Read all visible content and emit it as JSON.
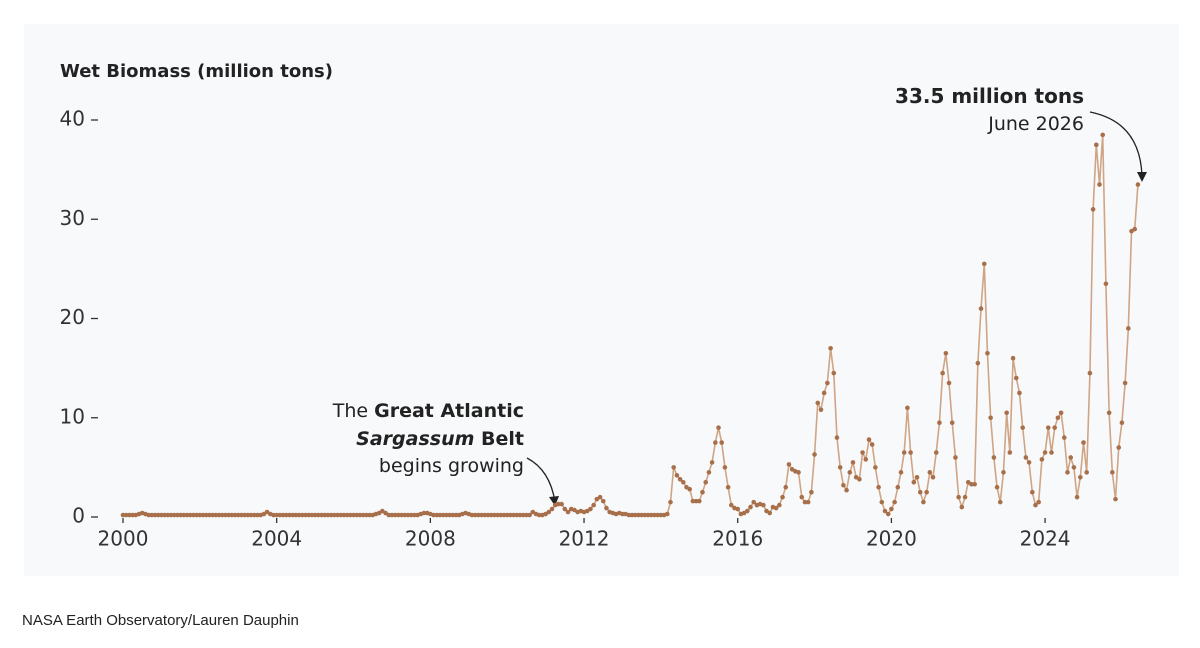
{
  "chart_data": {
    "type": "line",
    "y_label": "Wet Biomass (million tons)",
    "credit": "NASA Earth Observatory/Lauren Dauphin",
    "annotations": [
      {
        "lines": [
          [
            "The ",
            "Great Atlantic"
          ],
          [
            "Sargassum",
            " Belt"
          ],
          [
            "begins growing"
          ]
        ]
      },
      {
        "lines": [
          [
            "33.5 million tons"
          ],
          [
            "June 2026"
          ]
        ]
      }
    ],
    "color": "#a8704a",
    "line_color": "#cfa585",
    "xlim": [
      2000,
      2027
    ],
    "ylim": [
      0,
      40
    ],
    "xticks": [
      2000,
      2004,
      2008,
      2012,
      2016,
      2020,
      2024
    ],
    "yticks": [
      0,
      10,
      20,
      30,
      40
    ],
    "x": [
      2000,
      2000.083,
      2000.167,
      2000.25,
      2000.333,
      2000.417,
      2000.5,
      2000.583,
      2000.667,
      2000.75,
      2000.833,
      2000.917,
      2001,
      2001.083,
      2001.167,
      2001.25,
      2001.333,
      2001.417,
      2001.5,
      2001.583,
      2001.667,
      2001.75,
      2001.833,
      2001.917,
      2002,
      2002.083,
      2002.167,
      2002.25,
      2002.333,
      2002.417,
      2002.5,
      2002.583,
      2002.667,
      2002.75,
      2002.833,
      2002.917,
      2003,
      2003.083,
      2003.167,
      2003.25,
      2003.333,
      2003.417,
      2003.5,
      2003.583,
      2003.667,
      2003.75,
      2003.833,
      2003.917,
      2004,
      2004.083,
      2004.167,
      2004.25,
      2004.333,
      2004.417,
      2004.5,
      2004.583,
      2004.667,
      2004.75,
      2004.833,
      2004.917,
      2005,
      2005.083,
      2005.167,
      2005.25,
      2005.333,
      2005.417,
      2005.5,
      2005.583,
      2005.667,
      2005.75,
      2005.833,
      2005.917,
      2006,
      2006.083,
      2006.167,
      2006.25,
      2006.333,
      2006.417,
      2006.5,
      2006.583,
      2006.667,
      2006.75,
      2006.833,
      2006.917,
      2007,
      2007.083,
      2007.167,
      2007.25,
      2007.333,
      2007.417,
      2007.5,
      2007.583,
      2007.667,
      2007.75,
      2007.833,
      2007.917,
      2008,
      2008.083,
      2008.167,
      2008.25,
      2008.333,
      2008.417,
      2008.5,
      2008.583,
      2008.667,
      2008.75,
      2008.833,
      2008.917,
      2009,
      2009.083,
      2009.167,
      2009.25,
      2009.333,
      2009.417,
      2009.5,
      2009.583,
      2009.667,
      2009.75,
      2009.833,
      2009.917,
      2010,
      2010.083,
      2010.167,
      2010.25,
      2010.333,
      2010.417,
      2010.5,
      2010.583,
      2010.667,
      2010.75,
      2010.833,
      2010.917,
      2011,
      2011.083,
      2011.167,
      2011.25,
      2011.333,
      2011.417,
      2011.5,
      2011.583,
      2011.667,
      2011.75,
      2011.833,
      2011.917,
      2012,
      2012.083,
      2012.167,
      2012.25,
      2012.333,
      2012.417,
      2012.5,
      2012.583,
      2012.667,
      2012.75,
      2012.833,
      2012.917,
      2013,
      2013.083,
      2013.167,
      2013.25,
      2013.333,
      2013.417,
      2013.5,
      2013.583,
      2013.667,
      2013.75,
      2013.833,
      2013.917,
      2014,
      2014.083,
      2014.167,
      2014.25,
      2014.333,
      2014.417,
      2014.5,
      2014.583,
      2014.667,
      2014.75,
      2014.833,
      2014.917,
      2015,
      2015.083,
      2015.167,
      2015.25,
      2015.333,
      2015.417,
      2015.5,
      2015.583,
      2015.667,
      2015.75,
      2015.833,
      2015.917,
      2016,
      2016.083,
      2016.167,
      2016.25,
      2016.333,
      2016.417,
      2016.5,
      2016.583,
      2016.667,
      2016.75,
      2016.833,
      2016.917,
      2017,
      2017.083,
      2017.167,
      2017.25,
      2017.333,
      2017.417,
      2017.5,
      2017.583,
      2017.667,
      2017.75,
      2017.833,
      2017.917,
      2018,
      2018.083,
      2018.167,
      2018.25,
      2018.333,
      2018.417,
      2018.5,
      2018.583,
      2018.667,
      2018.75,
      2018.833,
      2018.917,
      2019,
      2019.083,
      2019.167,
      2019.25,
      2019.333,
      2019.417,
      2019.5,
      2019.583,
      2019.667,
      2019.75,
      2019.833,
      2019.917,
      2020,
      2020.083,
      2020.167,
      2020.25,
      2020.333,
      2020.417,
      2020.5,
      2020.583,
      2020.667,
      2020.75,
      2020.833,
      2020.917,
      2021,
      2021.083,
      2021.167,
      2021.25,
      2021.333,
      2021.417,
      2021.5,
      2021.583,
      2021.667,
      2021.75,
      2021.833,
      2021.917,
      2022,
      2022.083,
      2022.167,
      2022.25,
      2022.333,
      2022.417,
      2022.5,
      2022.583,
      2022.667,
      2022.75,
      2022.833,
      2022.917,
      2023,
      2023.083,
      2023.167,
      2023.25,
      2023.333,
      2023.417,
      2023.5,
      2023.583,
      2023.667,
      2023.75,
      2023.833,
      2023.917,
      2024,
      2024.083,
      2024.167,
      2024.25,
      2024.333,
      2024.417,
      2024.5,
      2024.583,
      2024.667,
      2024.75,
      2024.833,
      2024.917,
      2025,
      2025.083,
      2025.167,
      2025.25,
      2025.333,
      2025.417,
      2025.5,
      2025.583,
      2025.667,
      2025.75,
      2025.833,
      2025.917,
      2026,
      2026.083,
      2026.167,
      2026.25,
      2026.333,
      2026.417
    ],
    "values": [
      0.2,
      0.2,
      0.2,
      0.2,
      0.2,
      0.3,
      0.4,
      0.3,
      0.2,
      0.2,
      0.2,
      0.2,
      0.2,
      0.2,
      0.2,
      0.2,
      0.2,
      0.2,
      0.2,
      0.2,
      0.2,
      0.2,
      0.2,
      0.2,
      0.2,
      0.2,
      0.2,
      0.2,
      0.2,
      0.2,
      0.2,
      0.2,
      0.2,
      0.2,
      0.2,
      0.2,
      0.2,
      0.2,
      0.2,
      0.2,
      0.2,
      0.2,
      0.2,
      0.2,
      0.3,
      0.5,
      0.3,
      0.2,
      0.2,
      0.2,
      0.2,
      0.2,
      0.2,
      0.2,
      0.2,
      0.2,
      0.2,
      0.2,
      0.2,
      0.2,
      0.2,
      0.2,
      0.2,
      0.2,
      0.2,
      0.2,
      0.2,
      0.2,
      0.2,
      0.2,
      0.2,
      0.2,
      0.2,
      0.2,
      0.2,
      0.2,
      0.2,
      0.2,
      0.2,
      0.3,
      0.4,
      0.6,
      0.4,
      0.2,
      0.2,
      0.2,
      0.2,
      0.2,
      0.2,
      0.2,
      0.2,
      0.2,
      0.2,
      0.3,
      0.4,
      0.4,
      0.3,
      0.2,
      0.2,
      0.2,
      0.2,
      0.2,
      0.2,
      0.2,
      0.2,
      0.2,
      0.3,
      0.4,
      0.3,
      0.2,
      0.2,
      0.2,
      0.2,
      0.2,
      0.2,
      0.2,
      0.2,
      0.2,
      0.2,
      0.2,
      0.2,
      0.2,
      0.2,
      0.2,
      0.2,
      0.2,
      0.2,
      0.2,
      0.5,
      0.3,
      0.2,
      0.2,
      0.3,
      0.5,
      0.8,
      1.2,
      1.3,
      1.3,
      0.8,
      0.5,
      0.8,
      0.7,
      0.5,
      0.6,
      0.5,
      0.6,
      0.8,
      1.2,
      1.8,
      2.0,
      1.6,
      0.9,
      0.5,
      0.4,
      0.3,
      0.4,
      0.3,
      0.3,
      0.2,
      0.2,
      0.2,
      0.2,
      0.2,
      0.2,
      0.2,
      0.2,
      0.2,
      0.2,
      0.2,
      0.2,
      0.3,
      1.5,
      5.0,
      4.2,
      3.8,
      3.5,
      3.0,
      2.8,
      1.6,
      1.6,
      1.6,
      2.5,
      3.5,
      4.5,
      5.5,
      7.5,
      9.0,
      7.5,
      5.0,
      3.0,
      1.2,
      0.9,
      0.8,
      0.3,
      0.4,
      0.6,
      1.0,
      1.5,
      1.2,
      1.3,
      1.2,
      0.6,
      0.4,
      1.0,
      0.9,
      1.2,
      2.0,
      3.0,
      5.3,
      4.8,
      4.6,
      4.5,
      2.0,
      1.5,
      1.5,
      2.5,
      6.3,
      11.5,
      10.8,
      12.5,
      13.5,
      17.0,
      14.5,
      8.0,
      5.0,
      3.2,
      2.7,
      4.5,
      5.5,
      4.0,
      3.8,
      6.5,
      5.8,
      7.8,
      7.3,
      5.0,
      3.0,
      1.5,
      0.6,
      0.3,
      0.8,
      1.5,
      3.0,
      4.5,
      6.5,
      11.0,
      6.5,
      3.5,
      4.0,
      2.5,
      1.5,
      2.5,
      4.5,
      4.0,
      6.5,
      9.5,
      14.5,
      16.5,
      13.5,
      9.5,
      6.0,
      2.0,
      1.0,
      2.0,
      3.5,
      3.3,
      3.3,
      15.5,
      21.0,
      25.5,
      16.5,
      10.0,
      6.0,
      3.0,
      1.5,
      4.5,
      10.5,
      6.5,
      16.0,
      14.0,
      12.5,
      9.0,
      6.0,
      5.5,
      2.5,
      1.2,
      1.5,
      5.8,
      6.5,
      9.0,
      6.5,
      9.0,
      10.0,
      10.5,
      8.0,
      4.5,
      6.0,
      5.0,
      2.0,
      4.0,
      7.5,
      4.5,
      14.5,
      31.0,
      37.5,
      33.5,
      38.5,
      23.5,
      10.5,
      4.5,
      1.8,
      7.0,
      9.5,
      13.5,
      19.0,
      28.8,
      29.0,
      33.5
    ]
  }
}
